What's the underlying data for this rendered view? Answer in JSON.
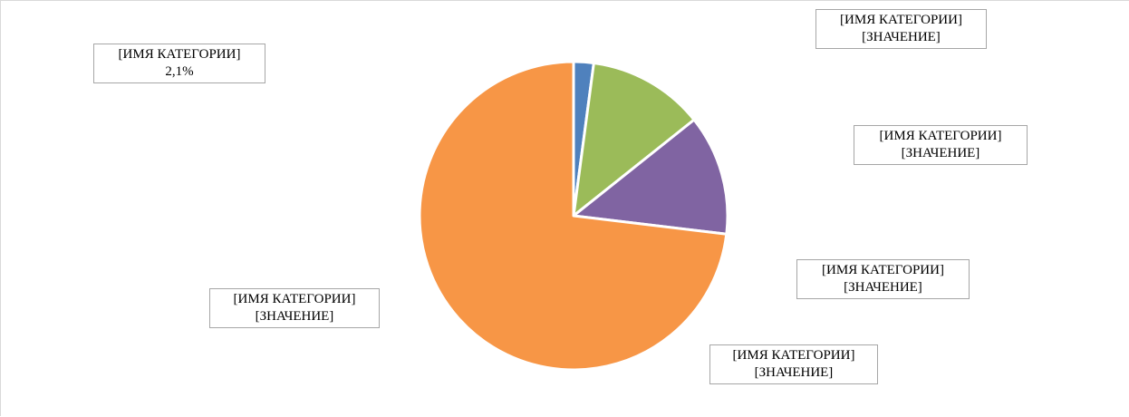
{
  "chart_data": {
    "type": "pie",
    "title": "",
    "slices": [
      {
        "category": "[ИМЯ КАТЕГОРИИ]",
        "value_text": "2,1%",
        "percent": 2.1,
        "color": "#4f81bd"
      },
      {
        "category": "[ИМЯ КАТЕГОРИИ]",
        "value_text": "[ЗНАЧЕНИЕ]",
        "percent": 12.2,
        "color": "#9bbb59"
      },
      {
        "category": "[ИМЯ КАТЕГОРИИ]",
        "value_text": "[ЗНАЧЕНИЕ]",
        "percent": 12.6,
        "color": "#8064a2"
      },
      {
        "category": "[ИМЯ КАТЕГОРИИ]",
        "value_text": "[ЗНАЧЕНИЕ]",
        "percent": 73.1,
        "color": "#f79646"
      }
    ],
    "extra_labels": [
      {
        "category": "[ИМЯ КАТЕГОРИИ]",
        "value_text": "[ЗНАЧЕНИЕ]"
      },
      {
        "category": "[ИМЯ КАТЕГОРИИ]",
        "value_text": "[ЗНАЧЕНИЕ]"
      }
    ],
    "start_angle_deg": 0,
    "direction": "clockwise",
    "border_color": "#ffffff"
  }
}
